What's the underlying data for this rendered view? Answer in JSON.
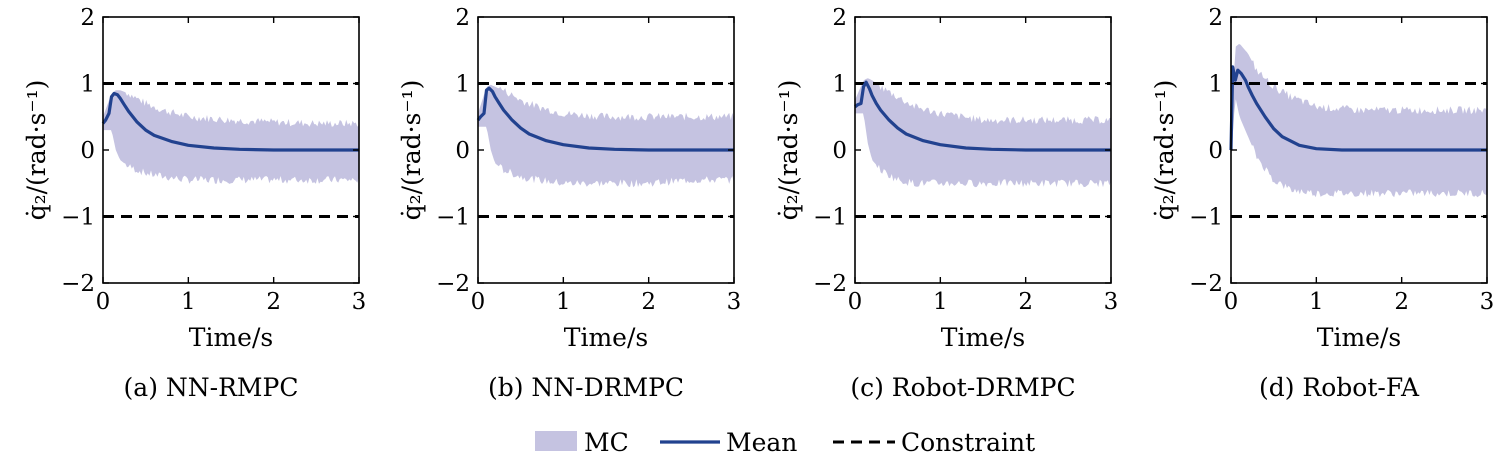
{
  "colors": {
    "band": "#c5c3e1",
    "mean": "#22428f",
    "constraint": "#000000"
  },
  "legend": [
    {
      "key": "mc",
      "label": "MC",
      "style": "band"
    },
    {
      "key": "mean",
      "label": "Mean",
      "style": "line"
    },
    {
      "key": "constraint",
      "label": "Constraint",
      "style": "dashed"
    }
  ],
  "chart_data": [
    {
      "type": "area",
      "caption": "(a) NN-RMPC",
      "xlabel": "Time/s",
      "ylabel": "q̇₂/(rad·s⁻¹)",
      "xlim": [
        0,
        3
      ],
      "ylim": [
        -2,
        2
      ],
      "xticks": [
        0,
        1,
        2,
        3
      ],
      "yticks": [
        -2,
        -1,
        0,
        1,
        2
      ],
      "constraint": [
        1,
        -1
      ],
      "series": [
        {
          "name": "Mean",
          "x": [
            0,
            0.03,
            0.07,
            0.1,
            0.13,
            0.17,
            0.2,
            0.25,
            0.3,
            0.4,
            0.5,
            0.6,
            0.8,
            1.0,
            1.3,
            1.6,
            2.0,
            2.5,
            3.0
          ],
          "y": [
            0.4,
            0.45,
            0.55,
            0.8,
            0.85,
            0.83,
            0.78,
            0.68,
            0.58,
            0.42,
            0.3,
            0.22,
            0.13,
            0.07,
            0.03,
            0.01,
            0.0,
            0.0,
            0.0
          ]
        },
        {
          "name": "MC",
          "x": [
            0,
            0.1,
            0.15,
            0.2,
            0.3,
            0.5,
            0.7,
            1.0,
            1.5,
            2.0,
            2.5,
            3.0
          ],
          "upper": [
            0.5,
            0.85,
            0.9,
            0.9,
            0.85,
            0.7,
            0.6,
            0.5,
            0.45,
            0.42,
            0.4,
            0.4
          ],
          "lower": [
            0.3,
            0.3,
            0.0,
            -0.15,
            -0.25,
            -0.35,
            -0.4,
            -0.45,
            -0.45,
            -0.45,
            -0.45,
            -0.45
          ]
        }
      ]
    },
    {
      "type": "area",
      "caption": "(b) NN-DRMPC",
      "xlabel": "Time/s",
      "ylabel": "q̇₂/(rad·s⁻¹)",
      "xlim": [
        0,
        3
      ],
      "ylim": [
        -2,
        2
      ],
      "xticks": [
        0,
        1,
        2,
        3
      ],
      "yticks": [
        -2,
        -1,
        0,
        1,
        2
      ],
      "constraint": [
        1,
        -1
      ],
      "series": [
        {
          "name": "Mean",
          "x": [
            0,
            0.03,
            0.07,
            0.1,
            0.13,
            0.17,
            0.2,
            0.25,
            0.3,
            0.4,
            0.5,
            0.6,
            0.8,
            1.0,
            1.3,
            1.6,
            2.0,
            2.5,
            3.0
          ],
          "y": [
            0.45,
            0.5,
            0.55,
            0.9,
            0.93,
            0.88,
            0.8,
            0.7,
            0.6,
            0.45,
            0.33,
            0.24,
            0.14,
            0.08,
            0.03,
            0.01,
            0.0,
            0.0,
            0.0
          ]
        },
        {
          "name": "MC",
          "x": [
            0,
            0.1,
            0.15,
            0.2,
            0.3,
            0.5,
            0.7,
            1.0,
            1.5,
            2.0,
            2.5,
            3.0
          ],
          "upper": [
            0.55,
            0.95,
            0.98,
            0.95,
            0.9,
            0.75,
            0.65,
            0.55,
            0.5,
            0.5,
            0.5,
            0.5
          ],
          "lower": [
            0.35,
            0.35,
            0.0,
            -0.2,
            -0.3,
            -0.4,
            -0.45,
            -0.5,
            -0.5,
            -0.5,
            -0.45,
            -0.45
          ]
        }
      ]
    },
    {
      "type": "area",
      "caption": "(c) Robot-DRMPC",
      "xlabel": "Time/s",
      "ylabel": "q̇₂/(rad·s⁻¹)",
      "xlim": [
        0,
        3
      ],
      "ylim": [
        -2,
        2
      ],
      "xticks": [
        0,
        1,
        2,
        3
      ],
      "yticks": [
        -2,
        -1,
        0,
        1,
        2
      ],
      "constraint": [
        1,
        -1
      ],
      "series": [
        {
          "name": "Mean",
          "x": [
            0,
            0.03,
            0.07,
            0.1,
            0.13,
            0.17,
            0.2,
            0.25,
            0.3,
            0.4,
            0.5,
            0.6,
            0.8,
            1.0,
            1.3,
            1.6,
            2.0,
            2.5,
            3.0
          ],
          "y": [
            0.65,
            0.68,
            0.7,
            0.95,
            1.02,
            0.92,
            0.82,
            0.7,
            0.6,
            0.45,
            0.33,
            0.24,
            0.14,
            0.08,
            0.03,
            0.01,
            0.0,
            0.0,
            0.0
          ]
        },
        {
          "name": "MC",
          "x": [
            0,
            0.1,
            0.15,
            0.2,
            0.3,
            0.5,
            0.7,
            1.0,
            1.5,
            2.0,
            2.5,
            3.0
          ],
          "upper": [
            0.75,
            1.05,
            1.08,
            1.05,
            0.95,
            0.8,
            0.65,
            0.55,
            0.45,
            0.45,
            0.45,
            0.45
          ],
          "lower": [
            0.55,
            0.55,
            0.1,
            -0.15,
            -0.3,
            -0.45,
            -0.5,
            -0.5,
            -0.5,
            -0.5,
            -0.5,
            -0.5
          ]
        }
      ]
    },
    {
      "type": "area",
      "caption": "(d) Robot-FA",
      "xlabel": "Time/s",
      "ylabel": "q̇₂/(rad·s⁻¹)",
      "xlim": [
        0,
        3
      ],
      "ylim": [
        -2,
        2
      ],
      "xticks": [
        0,
        1,
        2,
        3
      ],
      "yticks": [
        -2,
        -1,
        0,
        1,
        2
      ],
      "constraint": [
        1,
        -1
      ],
      "series": [
        {
          "name": "Mean",
          "x": [
            0,
            0.02,
            0.05,
            0.08,
            0.12,
            0.17,
            0.2,
            0.25,
            0.3,
            0.4,
            0.5,
            0.6,
            0.8,
            1.0,
            1.3,
            1.6,
            2.0,
            2.5,
            3.0
          ],
          "y": [
            0.0,
            1.25,
            1.05,
            1.2,
            1.15,
            1.05,
            0.95,
            0.82,
            0.7,
            0.5,
            0.32,
            0.2,
            0.07,
            0.02,
            0.0,
            0.0,
            0.0,
            0.0,
            0.0
          ]
        },
        {
          "name": "MC",
          "x": [
            0,
            0.05,
            0.1,
            0.2,
            0.3,
            0.5,
            0.7,
            1.0,
            1.5,
            2.0,
            2.5,
            3.0
          ],
          "upper": [
            0.2,
            1.55,
            1.6,
            1.45,
            1.2,
            0.95,
            0.8,
            0.65,
            0.6,
            0.6,
            0.6,
            0.6
          ],
          "lower": [
            -0.2,
            0.8,
            0.5,
            0.2,
            -0.1,
            -0.45,
            -0.6,
            -0.65,
            -0.65,
            -0.65,
            -0.65,
            -0.65
          ]
        }
      ]
    }
  ]
}
